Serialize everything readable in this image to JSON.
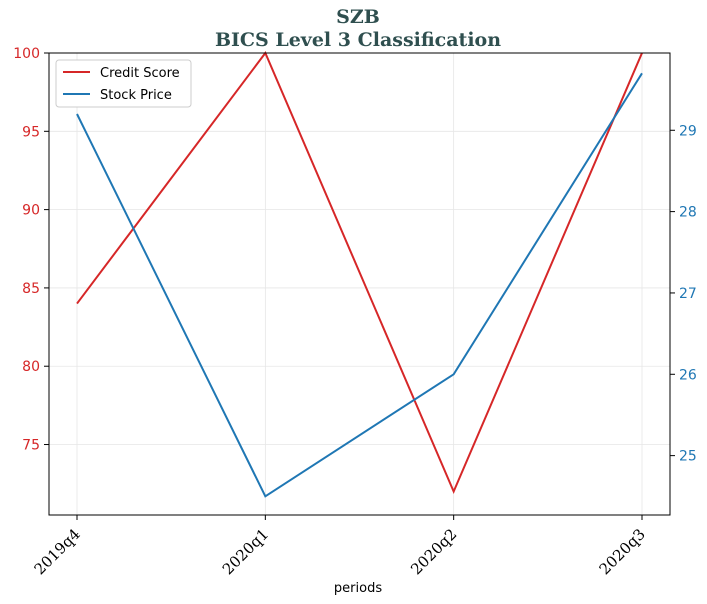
{
  "chart_data": {
    "type": "line",
    "title": "SZB",
    "subtitle": "BICS Level 3 Classification",
    "xlabel": "periods",
    "categories": [
      "2019q4",
      "2020q1",
      "2020q2",
      "2020q3"
    ],
    "y_left": {
      "ylim": [
        70.5,
        100
      ],
      "ticks": [
        75,
        80,
        85,
        90,
        95,
        100
      ],
      "color": "#d62728"
    },
    "y_right": {
      "ylim": [
        24.27,
        29.95
      ],
      "ticks": [
        25,
        26,
        27,
        28,
        29
      ],
      "color": "#1f77b4"
    },
    "grid": true,
    "legend_position": "top-left",
    "series": [
      {
        "name": "Credit Score",
        "axis": "left",
        "color": "#d62728",
        "values": [
          84,
          100,
          72,
          100
        ]
      },
      {
        "name": "Stock Price",
        "axis": "right",
        "color": "#1f77b4",
        "values": [
          29.2,
          24.5,
          26.0,
          29.7
        ]
      }
    ]
  }
}
